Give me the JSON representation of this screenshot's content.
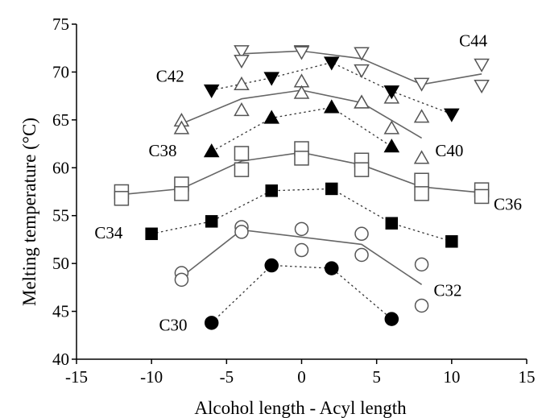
{
  "chart_data": {
    "type": "scatter",
    "xlabel": "Alcohol length - Acyl length",
    "ylabel": "Melting temperature (°C)",
    "xlim": [
      -15,
      15
    ],
    "ylim": [
      40,
      75
    ],
    "xticks": [
      "-15",
      "-10",
      "-5",
      "0",
      "5",
      "10",
      "15"
    ],
    "yticks": [
      "40",
      "45",
      "50",
      "55",
      "60",
      "65",
      "70",
      "75"
    ],
    "grid": false,
    "series": [
      {
        "name": "C30",
        "marker": "filled-circle",
        "points": [
          [
            -6,
            43.8
          ],
          [
            -2,
            49.8
          ],
          [
            2,
            49.5
          ],
          [
            6,
            44.2
          ]
        ],
        "fit": [
          [
            -6,
            43.8
          ],
          [
            -2,
            49.8
          ],
          [
            2,
            49.5
          ],
          [
            6,
            44.2
          ]
        ],
        "fit_style": "dotted"
      },
      {
        "name": "C32",
        "marker": "open-circle",
        "points": [
          [
            -8,
            49.0
          ],
          [
            -8,
            48.3
          ],
          [
            -4,
            53.8
          ],
          [
            -4,
            53.3
          ],
          [
            0,
            53.6
          ],
          [
            0,
            51.4
          ],
          [
            4,
            53.1
          ],
          [
            4,
            50.9
          ],
          [
            8,
            49.9
          ],
          [
            8,
            45.6
          ]
        ],
        "fit": [
          [
            -8,
            48.6
          ],
          [
            -4,
            53.5
          ],
          [
            4,
            52.0
          ],
          [
            8,
            47.8
          ]
        ],
        "fit_style": "solid"
      },
      {
        "name": "C34",
        "marker": "filled-square",
        "points": [
          [
            -10,
            53.1
          ],
          [
            -6,
            54.4
          ],
          [
            -2,
            57.6
          ],
          [
            2,
            57.8
          ],
          [
            6,
            54.2
          ],
          [
            10,
            52.3
          ]
        ],
        "fit": [
          [
            -10,
            53.1
          ],
          [
            -6,
            54.4
          ],
          [
            -2,
            57.6
          ],
          [
            2,
            57.8
          ],
          [
            6,
            54.2
          ],
          [
            10,
            52.3
          ]
        ],
        "fit_style": "dotted"
      },
      {
        "name": "C36",
        "marker": "open-square",
        "points": [
          [
            -12,
            57.5
          ],
          [
            -12,
            56.8
          ],
          [
            -8,
            58.3
          ],
          [
            -8,
            57.3
          ],
          [
            -4,
            61.5
          ],
          [
            -4,
            59.8
          ],
          [
            0,
            62.0
          ],
          [
            0,
            61.0
          ],
          [
            4,
            60.8
          ],
          [
            4,
            59.8
          ],
          [
            8,
            58.7
          ],
          [
            8,
            57.3
          ],
          [
            12,
            57.7
          ],
          [
            12,
            57.0
          ]
        ],
        "fit": [
          [
            -12,
            57.2
          ],
          [
            -8,
            57.8
          ],
          [
            -4,
            60.7
          ],
          [
            0,
            61.6
          ],
          [
            4,
            60.3
          ],
          [
            8,
            58.0
          ],
          [
            12,
            57.4
          ]
        ],
        "fit_style": "solid"
      },
      {
        "name": "C38",
        "marker": "filled-triangle-up",
        "points": [
          [
            -6,
            61.7
          ],
          [
            -2,
            65.2
          ],
          [
            2,
            66.3
          ],
          [
            6,
            62.2
          ]
        ],
        "fit": [
          [
            -6,
            61.7
          ],
          [
            -2,
            65.2
          ],
          [
            2,
            66.3
          ],
          [
            6,
            62.2
          ]
        ],
        "fit_style": "dotted"
      },
      {
        "name": "C40",
        "marker": "open-triangle-up",
        "points": [
          [
            -8,
            64.9
          ],
          [
            -8,
            64.1
          ],
          [
            -4,
            68.7
          ],
          [
            -4,
            66.0
          ],
          [
            0,
            69.0
          ],
          [
            0,
            67.8
          ],
          [
            4,
            66.8
          ],
          [
            4,
            66.8
          ],
          [
            6,
            67.3
          ],
          [
            6,
            64.1
          ],
          [
            8,
            65.3
          ],
          [
            8,
            61.0
          ]
        ],
        "fit": [
          [
            -8,
            64.6
          ],
          [
            -4,
            67.2
          ],
          [
            0,
            68.1
          ],
          [
            4,
            66.8
          ],
          [
            8,
            63.1
          ]
        ],
        "fit_style": "solid"
      },
      {
        "name": "C42",
        "marker": "filled-triangle-down",
        "points": [
          [
            -6,
            68.1
          ],
          [
            -2,
            69.4
          ],
          [
            2,
            71.0
          ],
          [
            6,
            68.0
          ],
          [
            10,
            65.6
          ]
        ],
        "fit": [
          [
            -6,
            68.1
          ],
          [
            -2,
            69.4
          ],
          [
            2,
            71.0
          ],
          [
            6,
            68.0
          ],
          [
            10,
            65.6
          ]
        ],
        "fit_style": "dotted"
      },
      {
        "name": "C44",
        "marker": "open-triangle-down",
        "points": [
          [
            -4,
            72.2
          ],
          [
            -4,
            71.2
          ],
          [
            0,
            72.2
          ],
          [
            0,
            72.1
          ],
          [
            4,
            72.0
          ],
          [
            4,
            70.2
          ],
          [
            8,
            68.8
          ],
          [
            12,
            70.8
          ],
          [
            12,
            68.6
          ]
        ],
        "fit": [
          [
            -4,
            71.9
          ],
          [
            0,
            72.2
          ],
          [
            4,
            71.4
          ],
          [
            8,
            68.7
          ],
          [
            12,
            69.8
          ]
        ],
        "fit_style": "solid"
      }
    ],
    "series_labels": [
      {
        "text": "C30",
        "x": -9.5,
        "y": 43.0
      },
      {
        "text": "C32",
        "x": 8.8,
        "y": 46.6
      },
      {
        "text": "C34",
        "x": -13.8,
        "y": 52.6
      },
      {
        "text": "C36",
        "x": 12.8,
        "y": 55.6
      },
      {
        "text": "C38",
        "x": -10.2,
        "y": 61.2
      },
      {
        "text": "C40",
        "x": 8.9,
        "y": 61.2
      },
      {
        "text": "C42",
        "x": -9.7,
        "y": 69.0
      },
      {
        "text": "C44",
        "x": 10.5,
        "y": 72.7
      }
    ]
  }
}
